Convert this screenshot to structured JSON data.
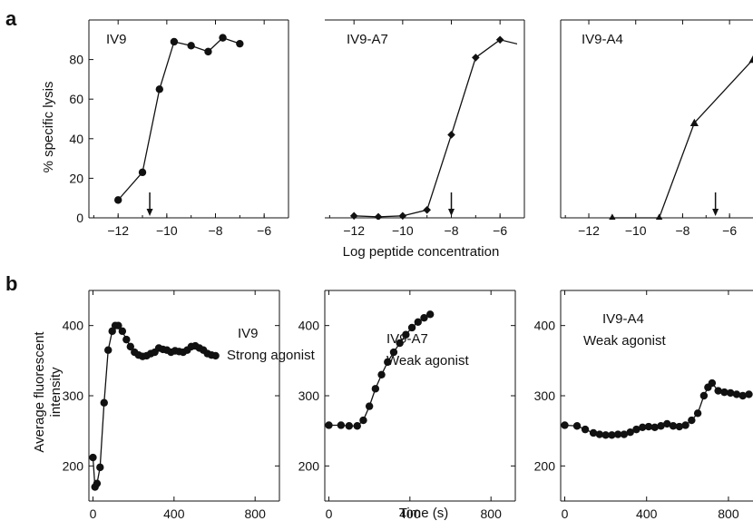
{
  "panel_labels": {
    "a": "a",
    "b": "b"
  },
  "shared_labels": {
    "a_ylabel": "% specific lysis",
    "a_xlabel": "Log peptide concentration",
    "b_ylabel_line1": "Average fluorescent",
    "b_ylabel_line2": "intensity",
    "b_xlabel": "Time (s)"
  },
  "chart_data": [
    {
      "type": "line",
      "panel": "a",
      "title": "IV9",
      "xlim": [
        -13.2,
        -5
      ],
      "ylim": [
        0,
        100
      ],
      "xticks": [
        "-12",
        "-10",
        "-8",
        "-6"
      ],
      "yticks": [
        "0",
        "20",
        "40",
        "60",
        "80"
      ],
      "marker": "circle",
      "x": [
        -12,
        -11,
        -10.3,
        -9.7,
        -9,
        -8.3,
        -7.7,
        -7
      ],
      "y": [
        9,
        23,
        65,
        89,
        87,
        84,
        91,
        88
      ],
      "arrow_x": -10.7
    },
    {
      "type": "line",
      "panel": "a",
      "title": "IV9-A7",
      "xlim": [
        -13.2,
        -5
      ],
      "ylim": [
        0,
        100
      ],
      "xticks": [
        "-12",
        "-10",
        "-8",
        "-6"
      ],
      "yticks": [],
      "marker": "diamond",
      "x": [
        -12,
        -11,
        -10,
        -9,
        -8,
        -7,
        -6,
        -5
      ],
      "y": [
        1,
        0.5,
        1,
        4,
        42,
        81,
        90,
        87
      ],
      "arrow_x": -8
    },
    {
      "type": "line",
      "panel": "a",
      "title": "IV9-A4",
      "xlim": [
        -13.2,
        -5
      ],
      "ylim": [
        0,
        100
      ],
      "xticks": [
        "-12",
        "-10",
        "-8",
        "-6"
      ],
      "yticks": [],
      "marker": "triangle",
      "x": [
        -11,
        -9,
        -7.5,
        -5
      ],
      "y": [
        0,
        0,
        48,
        80
      ],
      "arrow_x": -6.6
    },
    {
      "type": "line",
      "panel": "b",
      "title": "IV9",
      "subtitle": "Strong agonist",
      "xlim": [
        -20,
        920
      ],
      "ylim": [
        150,
        450
      ],
      "xticks": [
        "0",
        "400",
        "800"
      ],
      "yticks": [
        "200",
        "300",
        "400"
      ],
      "marker": "circle",
      "x": [
        0,
        10,
        20,
        35,
        55,
        75,
        95,
        110,
        125,
        145,
        165,
        185,
        205,
        225,
        245,
        265,
        285,
        305,
        325,
        345,
        365,
        385,
        405,
        425,
        445,
        465,
        485,
        505,
        525,
        545,
        565,
        585,
        605
      ],
      "y": [
        212,
        170,
        175,
        198,
        290,
        365,
        392,
        400,
        400,
        392,
        380,
        370,
        362,
        358,
        356,
        357,
        360,
        362,
        368,
        366,
        365,
        362,
        364,
        363,
        362,
        365,
        370,
        371,
        368,
        365,
        360,
        358,
        357
      ]
    },
    {
      "type": "line",
      "panel": "b",
      "title": "IV9-A7",
      "subtitle": "Weak agonist",
      "xlim": [
        -20,
        920
      ],
      "ylim": [
        150,
        450
      ],
      "xticks": [
        "0",
        "400",
        "800"
      ],
      "yticks": [
        "200",
        "300",
        "400"
      ],
      "marker": "circle",
      "x": [
        0,
        60,
        100,
        140,
        170,
        200,
        230,
        260,
        290,
        320,
        350,
        380,
        410,
        440,
        470,
        500
      ],
      "y": [
        258,
        258,
        257,
        257,
        265,
        285,
        310,
        330,
        348,
        362,
        375,
        387,
        397,
        405,
        411,
        416
      ]
    },
    {
      "type": "line",
      "panel": "b",
      "title": "IV9-A4",
      "subtitle": "Weak agonist",
      "xlim": [
        -20,
        920
      ],
      "ylim": [
        150,
        450
      ],
      "xticks": [
        "0",
        "400",
        "800"
      ],
      "yticks": [
        "200",
        "300",
        "400"
      ],
      "marker": "circle",
      "x": [
        0,
        60,
        100,
        140,
        170,
        200,
        230,
        260,
        290,
        320,
        350,
        380,
        410,
        440,
        470,
        500,
        530,
        560,
        590,
        620,
        650,
        680,
        700,
        720,
        750,
        780,
        810,
        840,
        870,
        900
      ],
      "y": [
        258,
        257,
        252,
        247,
        245,
        244,
        244,
        245,
        245,
        248,
        252,
        255,
        256,
        255,
        257,
        260,
        257,
        256,
        258,
        265,
        275,
        300,
        312,
        318,
        307,
        305,
        304,
        302,
        300,
        302
      ]
    }
  ]
}
